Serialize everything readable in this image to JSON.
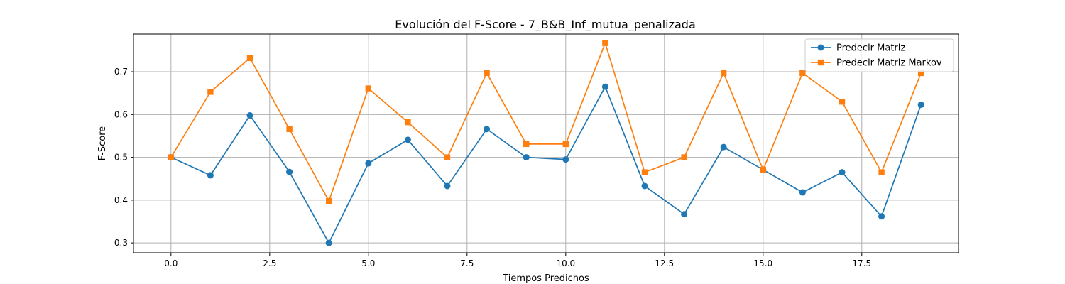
{
  "chart_data": {
    "type": "line",
    "title": "Evolución del F-Score - 7_B&B_Inf_mutua_penalizada",
    "xlabel": "Tiempos Predichos",
    "ylabel": "F-Score",
    "xlim": [
      -0.95,
      19.95
    ],
    "ylim": [
      0.277,
      0.788
    ],
    "xticks": [
      0.0,
      2.5,
      5.0,
      7.5,
      10.0,
      12.5,
      15.0,
      17.5
    ],
    "xtick_labels": [
      "0.0",
      "2.5",
      "5.0",
      "7.5",
      "10.0",
      "12.5",
      "15.0",
      "17.5"
    ],
    "yticks": [
      0.3,
      0.4,
      0.5,
      0.6,
      0.7
    ],
    "ytick_labels": [
      "0.3",
      "0.4",
      "0.5",
      "0.6",
      "0.7"
    ],
    "grid": true,
    "legend_position": "top-right",
    "x": [
      0,
      1,
      2,
      3,
      4,
      5,
      6,
      7,
      8,
      9,
      10,
      11,
      12,
      13,
      14,
      15,
      16,
      17,
      18,
      19
    ],
    "series": [
      {
        "name": "Predecir Matriz",
        "color": "#1f77b4",
        "marker": "circle",
        "values": [
          0.5,
          0.458,
          0.598,
          0.466,
          0.3,
          0.486,
          0.541,
          0.433,
          0.566,
          0.5,
          0.495,
          0.665,
          0.433,
          0.367,
          0.524,
          0.471,
          0.418,
          0.465,
          0.362,
          0.623
        ]
      },
      {
        "name": "Predecir Matriz Markov",
        "color": "#ff7f0e",
        "marker": "square",
        "values": [
          0.5,
          0.653,
          0.732,
          0.566,
          0.398,
          0.661,
          0.582,
          0.5,
          0.697,
          0.531,
          0.531,
          0.767,
          0.465,
          0.5,
          0.697,
          0.471,
          0.697,
          0.63,
          0.465,
          0.697
        ]
      }
    ]
  }
}
